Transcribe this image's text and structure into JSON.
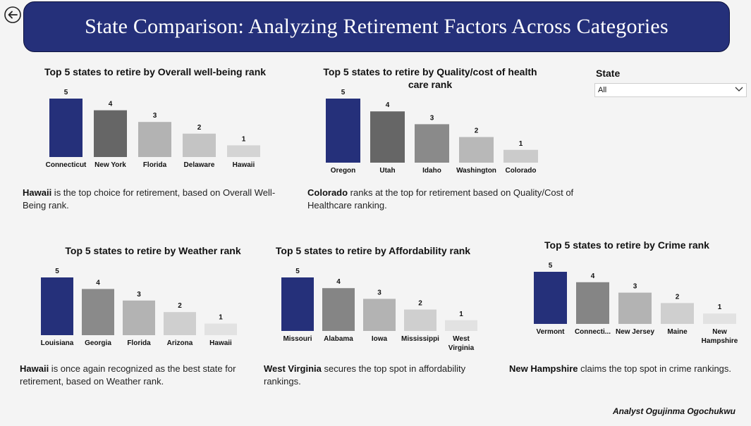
{
  "header": {
    "title": "State Comparison: Analyzing Retirement Factors Across Categories"
  },
  "slicer": {
    "title": "State",
    "selected": "All"
  },
  "footer": {
    "author": "Analyst Ogujinma Ogochukwu"
  },
  "charts": [
    {
      "id": "wellbeing",
      "title": "Top 5 states to retire by Overall well-being rank",
      "desc_bold": "Hawaii",
      "desc_rest": " is the top choice for retirement, based on Overall Well-Being rank."
    },
    {
      "id": "health",
      "title": "Top 5 states to retire by Quality/cost of health care rank",
      "desc_bold": "Colorado",
      "desc_rest": " ranks at the top for retirement based on Quality/Cost of Healthcare ranking."
    },
    {
      "id": "weather",
      "title": "Top 5 states to retire by Weather rank",
      "desc_bold": "Hawaii",
      "desc_rest": " is once again recognized as the best state for retirement, based on Weather rank."
    },
    {
      "id": "afford",
      "title": "Top 5 states to retire by Affordability rank",
      "desc_bold": "West Virginia",
      "desc_rest": " secures the top spot in affordability rankings."
    },
    {
      "id": "crime",
      "title": "Top 5 states to retire by Crime rank",
      "desc_bold": "New Hampshire",
      "desc_rest": " claims the top spot in crime rankings."
    }
  ],
  "chart_data": [
    {
      "type": "bar",
      "title": "Top 5 states to retire by Overall well-being rank",
      "categories": [
        "Connecticut",
        "New York",
        "Florida",
        "Delaware",
        "Hawaii"
      ],
      "values": [
        5,
        4,
        3,
        2,
        1
      ],
      "colors": [
        "#25307a",
        "#666666",
        "#b3b3b3",
        "#c4c4c4",
        "#d4d4d4"
      ]
    },
    {
      "type": "bar",
      "title": "Top 5 states to retire by Quality/cost of health care rank",
      "categories": [
        "Oregon",
        "Utah",
        "Idaho",
        "Washington",
        "Colorado"
      ],
      "values": [
        5,
        4,
        3,
        2,
        1
      ],
      "colors": [
        "#25307a",
        "#666666",
        "#8a8a8a",
        "#b8b8b8",
        "#cbcbcb"
      ]
    },
    {
      "type": "bar",
      "title": "Top 5 states to retire by Weather rank",
      "categories": [
        "Louisiana",
        "Georgia",
        "Florida",
        "Arizona",
        "Hawaii"
      ],
      "values": [
        5,
        4,
        3,
        2,
        1
      ],
      "colors": [
        "#25307a",
        "#8a8a8a",
        "#b3b3b3",
        "#cfcfcf",
        "#e2e2e2"
      ]
    },
    {
      "type": "bar",
      "title": "Top 5 states to retire by Affordability rank",
      "categories": [
        "Missouri",
        "Alabama",
        "Iowa",
        "Mississippi",
        "West Virginia"
      ],
      "values": [
        5,
        4,
        3,
        2,
        1
      ],
      "colors": [
        "#25307a",
        "#858585",
        "#b3b3b3",
        "#cfcfcf",
        "#e2e2e2"
      ]
    },
    {
      "type": "bar",
      "title": "Top 5 states to retire by Crime rank",
      "categories": [
        "Vermont",
        "Connecti...",
        "New Jersey",
        "Maine",
        "New Hampshire"
      ],
      "values": [
        5,
        4,
        3,
        2,
        1
      ],
      "colors": [
        "#25307a",
        "#858585",
        "#b3b3b3",
        "#cfcfcf",
        "#e2e2e2"
      ]
    }
  ]
}
